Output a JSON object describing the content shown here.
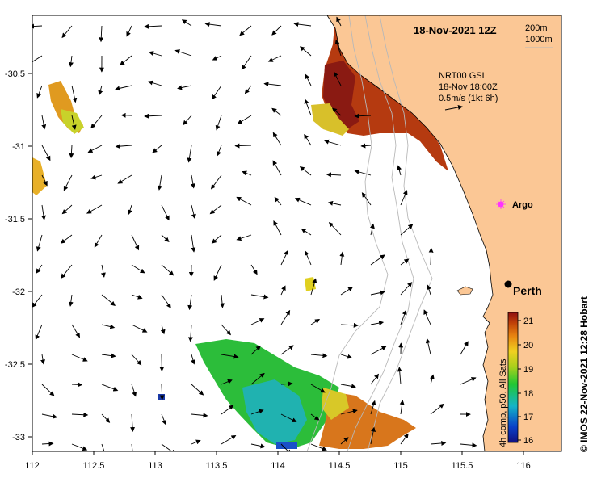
{
  "map": {
    "title": "18-Nov-2021 12Z",
    "bathymetry_legend": [
      "200m",
      "1000m"
    ],
    "current_info": {
      "line1": "NRT00 GSL",
      "line2": "18-Nov 18:00Z",
      "line3": "0.5m/s (1kt 6h)"
    },
    "colorbar": {
      "caption": "4h comp, p50, All Sats",
      "ticks": [
        "21",
        "20",
        "19",
        "18",
        "17",
        "16"
      ],
      "range": [
        16,
        21
      ]
    },
    "markers": {
      "argo": "Argo",
      "city": "Perth"
    },
    "axes": {
      "x_ticks": [
        "112",
        "112.5",
        "113",
        "113.5",
        "114",
        "114.5",
        "115",
        "115.5",
        "116"
      ],
      "y_ticks": [
        "-30.5",
        "-31",
        "-31.5",
        "-32",
        "-32.5",
        "-33"
      ],
      "lon_range": [
        112,
        116.3
      ],
      "lat_range": [
        -33.1,
        -30.1
      ]
    },
    "credit": "© IMOS 22-Nov-2021 12:28 Hobart",
    "colors": {
      "land": "#fbc795",
      "coast": "#000000",
      "contour": "#b8b8b8",
      "argo": "#ff33ff"
    }
  }
}
